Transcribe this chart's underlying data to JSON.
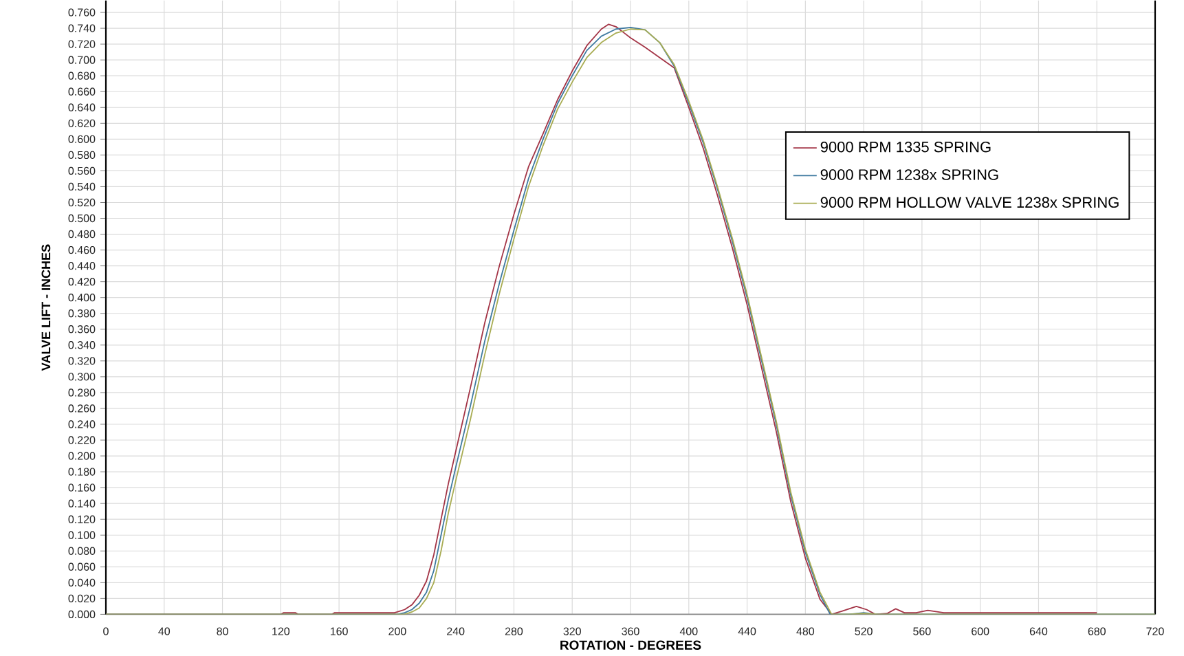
{
  "chart_data": {
    "type": "line",
    "xlabel": "ROTATION - DEGREES",
    "ylabel": "VALVE LIFT - INCHES",
    "xlim": [
      0,
      720
    ],
    "ylim": [
      0,
      0.775
    ],
    "xticks": [
      0,
      40,
      80,
      120,
      160,
      200,
      240,
      280,
      320,
      360,
      400,
      440,
      480,
      520,
      560,
      600,
      640,
      680,
      720
    ],
    "yticks": [
      {
        "value": 0,
        "label": "0.000"
      },
      {
        "value": 0.02,
        "label": "0.020"
      },
      {
        "value": 0.04,
        "label": "0.040"
      },
      {
        "value": 0.06,
        "label": "0.060"
      },
      {
        "value": 0.08,
        "label": "0.080"
      },
      {
        "value": 0.1,
        "label": "0.100"
      },
      {
        "value": 0.12,
        "label": "0.120"
      },
      {
        "value": 0.14,
        "label": "0.140"
      },
      {
        "value": 0.16,
        "label": "0.160"
      },
      {
        "value": 0.18,
        "label": "0.180"
      },
      {
        "value": 0.2,
        "label": "0.200"
      },
      {
        "value": 0.22,
        "label": "0.220"
      },
      {
        "value": 0.24,
        "label": "0.240"
      },
      {
        "value": 0.26,
        "label": "0.260"
      },
      {
        "value": 0.28,
        "label": "0.280"
      },
      {
        "value": 0.3,
        "label": "0.300"
      },
      {
        "value": 0.32,
        "label": "0.320"
      },
      {
        "value": 0.34,
        "label": "0.340"
      },
      {
        "value": 0.36,
        "label": "0.360"
      },
      {
        "value": 0.38,
        "label": "0.380"
      },
      {
        "value": 0.4,
        "label": "0.400"
      },
      {
        "value": 0.42,
        "label": "0.420"
      },
      {
        "value": 0.44,
        "label": "0.440"
      },
      {
        "value": 0.46,
        "label": "0.460"
      },
      {
        "value": 0.48,
        "label": "0.480"
      },
      {
        "value": 0.5,
        "label": "0.500"
      },
      {
        "value": 0.52,
        "label": "0.520"
      },
      {
        "value": 0.54,
        "label": "0.540"
      },
      {
        "value": 0.56,
        "label": "0.560"
      },
      {
        "value": 0.58,
        "label": "0.580"
      },
      {
        "value": 0.6,
        "label": "0.600"
      },
      {
        "value": 0.62,
        "label": "0.620"
      },
      {
        "value": 0.64,
        "label": "0.640"
      },
      {
        "value": 0.66,
        "label": "0.660"
      },
      {
        "value": 0.68,
        "label": "0.680"
      },
      {
        "value": 0.7,
        "label": "0.700"
      },
      {
        "value": 0.72,
        "label": "0.720"
      },
      {
        "value": 0.74,
        "label": "0.740"
      },
      {
        "value": 0.76,
        "label": "0.760"
      }
    ],
    "grid": true,
    "legend": "top right",
    "line_style": "solid",
    "series": [
      {
        "name": "9000 RPM 1335 SPRING",
        "color": "#a33446",
        "x": [
          0,
          120,
          122,
          130,
          132,
          155,
          157,
          198,
          200,
          205,
          210,
          215,
          220,
          225,
          230,
          235,
          240,
          250,
          260,
          270,
          280,
          290,
          300,
          310,
          320,
          330,
          340,
          345,
          350,
          355,
          360,
          370,
          380,
          390,
          400,
          410,
          420,
          430,
          440,
          450,
          460,
          470,
          480,
          490,
          498,
          505,
          515,
          522,
          528,
          536,
          542,
          548,
          556,
          564,
          575,
          600,
          640,
          680
        ],
        "values": [
          0,
          0,
          0.002,
          0.002,
          0,
          0,
          0.002,
          0.002,
          0.003,
          0.006,
          0.012,
          0.024,
          0.042,
          0.075,
          0.12,
          0.165,
          0.205,
          0.285,
          0.368,
          0.44,
          0.505,
          0.565,
          0.607,
          0.65,
          0.686,
          0.718,
          0.739,
          0.745,
          0.742,
          0.735,
          0.728,
          0.716,
          0.703,
          0.69,
          0.64,
          0.588,
          0.527,
          0.462,
          0.391,
          0.311,
          0.231,
          0.142,
          0.071,
          0.019,
          0,
          0.004,
          0.01,
          0.006,
          0,
          0.001,
          0.007,
          0.002,
          0.002,
          0.005,
          0.002,
          0.002,
          0.002,
          0.002
        ]
      },
      {
        "name": "9000 RPM 1238x SPRING",
        "color": "#3f7aa0",
        "x": [
          0,
          200,
          205,
          210,
          215,
          220,
          225,
          230,
          235,
          240,
          250,
          260,
          270,
          280,
          290,
          300,
          310,
          320,
          330,
          340,
          350,
          360,
          370,
          380,
          390,
          400,
          410,
          420,
          430,
          440,
          450,
          460,
          470,
          480,
          490,
          497,
          510,
          520,
          530,
          720
        ],
        "values": [
          0,
          0,
          0.002,
          0.006,
          0.014,
          0.028,
          0.055,
          0.1,
          0.145,
          0.185,
          0.262,
          0.345,
          0.418,
          0.485,
          0.55,
          0.6,
          0.645,
          0.68,
          0.712,
          0.73,
          0.739,
          0.741,
          0.738,
          0.722,
          0.692,
          0.645,
          0.595,
          0.535,
          0.47,
          0.4,
          0.32,
          0.24,
          0.15,
          0.078,
          0.025,
          0,
          0,
          0.002,
          0,
          0
        ]
      },
      {
        "name": "9000 RPM HOLLOW VALVE 1238x SPRING",
        "color": "#a8ac52",
        "x": [
          0,
          200,
          205,
          210,
          215,
          220,
          225,
          230,
          235,
          240,
          250,
          260,
          270,
          280,
          290,
          300,
          310,
          320,
          330,
          340,
          350,
          360,
          370,
          380,
          390,
          400,
          410,
          420,
          430,
          440,
          450,
          460,
          470,
          480,
          490,
          498,
          510,
          520,
          530,
          720
        ],
        "values": [
          0,
          0,
          0,
          0.003,
          0.008,
          0.02,
          0.04,
          0.08,
          0.128,
          0.168,
          0.245,
          0.328,
          0.405,
          0.474,
          0.54,
          0.592,
          0.638,
          0.672,
          0.703,
          0.722,
          0.734,
          0.739,
          0.738,
          0.722,
          0.694,
          0.648,
          0.598,
          0.538,
          0.474,
          0.404,
          0.324,
          0.244,
          0.154,
          0.082,
          0.028,
          0,
          0,
          0.001,
          0,
          0
        ]
      }
    ]
  }
}
